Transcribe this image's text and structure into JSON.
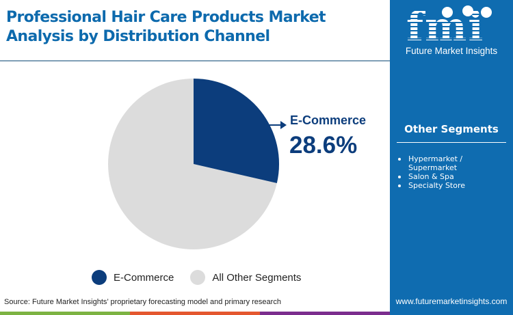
{
  "header": {
    "title": "Professional Hair Care Products Market Analysis by Distribution Channel"
  },
  "brand": {
    "logo_text": "fmi",
    "tagline": "Future Market Insights",
    "website": "www.futuremarketinsights.com",
    "sidebar_color": "#0f6cb0"
  },
  "other_segments": {
    "title": "Other Segments",
    "items": [
      {
        "label": "Hypermarket / Supermarket"
      },
      {
        "label": "Salon & Spa"
      },
      {
        "label": "Specialty Store"
      }
    ]
  },
  "callout": {
    "label": "E-Commerce",
    "value": "28.6%"
  },
  "legend": {
    "items": [
      {
        "label": "E-Commerce",
        "color": "#0c3d7c"
      },
      {
        "label": "All Other Segments",
        "color": "#dcdcdc"
      }
    ]
  },
  "footer": {
    "source": "Source: Future Market Insights’ proprietary forecasting model and primary research",
    "bar_colors": [
      "#7cb342",
      "#e4572e",
      "#7b2d8e"
    ]
  },
  "chart_data": {
    "type": "pie",
    "title": "Professional Hair Care Products Market Analysis by Distribution Channel",
    "categories": [
      "E-Commerce",
      "All Other Segments"
    ],
    "values": [
      28.6,
      71.4
    ],
    "colors": [
      "#0c3d7c",
      "#dcdcdc"
    ],
    "start_angle": "12 o'clock, clockwise",
    "annotations": [
      {
        "target": "E-Commerce",
        "text": "E-Commerce 28.6%"
      }
    ],
    "legend_position": "bottom"
  }
}
